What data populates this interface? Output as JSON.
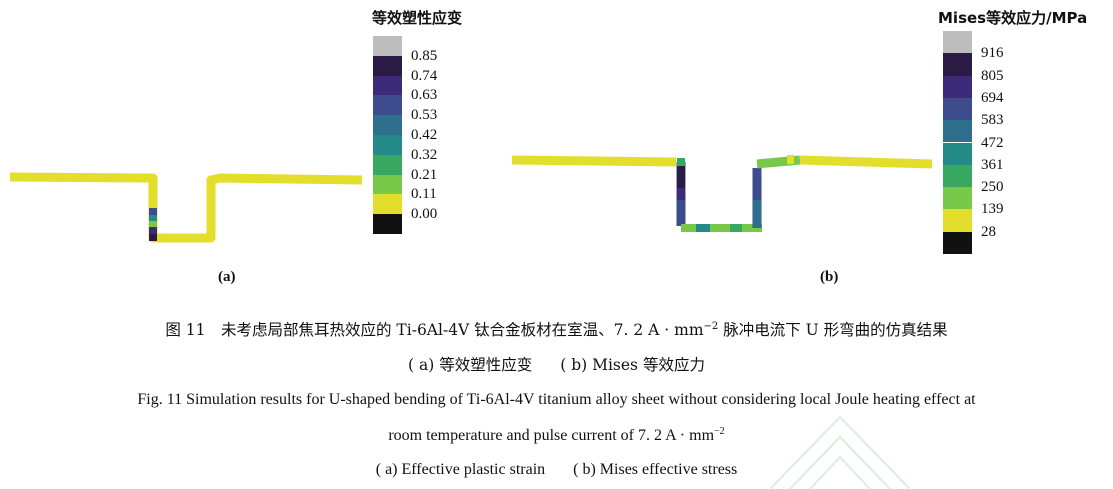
{
  "panel_a": {
    "colorbar_title": "等效塑性应变",
    "ticks": [
      "0.85",
      "0.74",
      "0.63",
      "0.53",
      "0.42",
      "0.32",
      "0.21",
      "0.11",
      "0.00"
    ],
    "label": "(a)"
  },
  "panel_b": {
    "colorbar_title": "Mises等效应力/MPa",
    "ticks": [
      "916",
      "805",
      "694",
      "583",
      "472",
      "361",
      "250",
      "139",
      "28"
    ],
    "label": "(b)"
  },
  "colors": {
    "bands": [
      "#bdbdbd",
      "#2c1b45",
      "#3c2b78",
      "#3d4c8c",
      "#2f6f8e",
      "#238a87",
      "#38a860",
      "#78c84a",
      "#e3de2c",
      "#111111"
    ]
  },
  "caption": {
    "zh_title_pre": "图 11　未考虑局部焦耳热效应的 Ti-6Al-4V 钛合金板材在室温、7. 2 A · mm",
    "zh_title_sup": "−2",
    "zh_title_post": " 脉冲电流下 U 形弯曲的仿真结果",
    "zh_sub_a": "( a)  等效塑性应变",
    "zh_sub_b": "( b)  Mises 等效应力",
    "en_line1": "Fig. 11    Simulation results for U-shaped bending of Ti-6Al-4V titanium alloy sheet without considering local Joule heating effect at",
    "en_line2_pre": "room temperature and pulse current of 7. 2 A · mm",
    "en_line2_sup": "−2",
    "en_sub_a": "( a)   Effective plastic strain",
    "en_sub_b": "( b)   Mises effective stress"
  }
}
